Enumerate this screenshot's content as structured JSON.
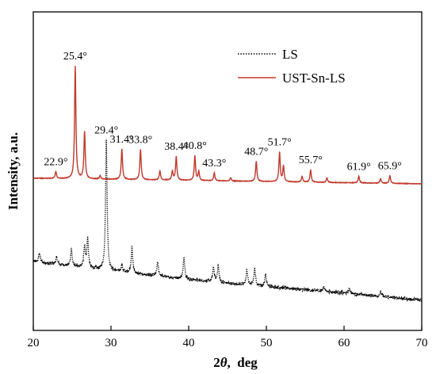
{
  "chart_data": {
    "type": "line",
    "xlabel": {
      "prefix": "2",
      "italic": "θ",
      "suffix": ",  deg"
    },
    "ylabel": "Intensity, a.u.",
    "xlim": [
      20,
      70
    ],
    "xticks": [
      20,
      30,
      40,
      50,
      60,
      70
    ],
    "grid": false,
    "legend_position": "top-right",
    "series": [
      {
        "name": "LS",
        "color": "#000000",
        "style": "dotted",
        "baseline": [
          [
            20,
            0.17
          ],
          [
            30,
            0.13
          ],
          [
            45,
            0.08
          ],
          [
            60,
            0.04
          ],
          [
            70,
            0.01
          ]
        ],
        "peaks": [
          [
            20.8,
            0.04
          ],
          [
            23.0,
            0.03
          ],
          [
            24.9,
            0.07
          ],
          [
            26.6,
            0.09
          ],
          [
            27.0,
            0.12
          ],
          [
            29.4,
            0.54
          ],
          [
            31.4,
            0.03
          ],
          [
            32.7,
            0.11
          ],
          [
            36.0,
            0.06
          ],
          [
            39.4,
            0.09
          ],
          [
            43.2,
            0.06
          ],
          [
            43.8,
            0.07
          ],
          [
            47.5,
            0.06
          ],
          [
            48.5,
            0.07
          ],
          [
            49.9,
            0.05
          ],
          [
            57.4,
            0.02
          ],
          [
            60.7,
            0.02
          ],
          [
            64.7,
            0.02
          ]
        ]
      },
      {
        "name": "UST-Sn-LS",
        "color": "#c0392b",
        "style": "solid",
        "baseline": [
          [
            20,
            0.05
          ],
          [
            70,
            0.0
          ]
        ],
        "peaks": [
          [
            22.9,
            0.06
          ],
          [
            25.4,
            1.0
          ],
          [
            26.6,
            0.42
          ],
          [
            28.6,
            0.03
          ],
          [
            31.4,
            0.27
          ],
          [
            33.8,
            0.27
          ],
          [
            36.3,
            0.08
          ],
          [
            37.9,
            0.08
          ],
          [
            38.4,
            0.21
          ],
          [
            40.8,
            0.22
          ],
          [
            41.3,
            0.08
          ],
          [
            43.3,
            0.07
          ],
          [
            45.4,
            0.03
          ],
          [
            48.7,
            0.18
          ],
          [
            51.7,
            0.26
          ],
          [
            52.2,
            0.14
          ],
          [
            54.6,
            0.05
          ],
          [
            55.7,
            0.11
          ],
          [
            57.8,
            0.04
          ],
          [
            61.9,
            0.06
          ],
          [
            64.7,
            0.04
          ],
          [
            65.9,
            0.07
          ]
        ]
      }
    ],
    "annotations": [
      {
        "text": "22.9°",
        "x": 22.9,
        "series": "UST-Sn-LS"
      },
      {
        "text": "25.4°",
        "x": 25.4,
        "series": "UST-Sn-LS"
      },
      {
        "text": "31.4°",
        "x": 31.4,
        "series": "UST-Sn-LS"
      },
      {
        "text": "33.8°",
        "x": 33.8,
        "series": "UST-Sn-LS"
      },
      {
        "text": "38.4°",
        "x": 38.4,
        "series": "UST-Sn-LS"
      },
      {
        "text": "40.8°",
        "x": 40.8,
        "series": "UST-Sn-LS"
      },
      {
        "text": "43.3°",
        "x": 43.3,
        "series": "UST-Sn-LS"
      },
      {
        "text": "48.7°",
        "x": 48.7,
        "series": "UST-Sn-LS"
      },
      {
        "text": "51.7°",
        "x": 51.7,
        "series": "UST-Sn-LS"
      },
      {
        "text": "55.7°",
        "x": 55.7,
        "series": "UST-Sn-LS"
      },
      {
        "text": "61.9°",
        "x": 61.9,
        "series": "UST-Sn-LS"
      },
      {
        "text": "65.9°",
        "x": 65.9,
        "series": "UST-Sn-LS"
      },
      {
        "text": "29.4°",
        "x": 29.4,
        "series": "LS"
      }
    ]
  }
}
